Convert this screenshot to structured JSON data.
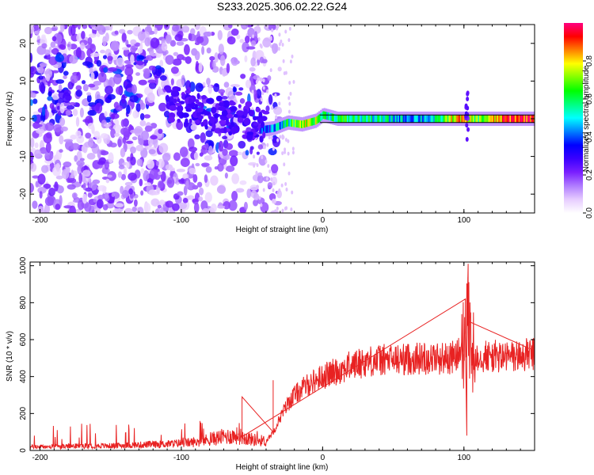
{
  "chart_data": [
    {
      "type": "heatmap",
      "title": "S233.2025.306.02.22.G24",
      "xlabel": "Height of straight line (km)",
      "ylabel": "Frequency (Hz)",
      "xlim": [
        -207,
        150
      ],
      "ylim": [
        -25,
        25
      ],
      "xticks": [
        -200,
        -100,
        0,
        100
      ],
      "xtick_labels": [
        "-200",
        "-100",
        "0",
        "100"
      ],
      "yticks": [
        -20,
        -10,
        0,
        10,
        20
      ],
      "ytick_labels": [
        "-20",
        "-10",
        "0",
        "10",
        "20"
      ],
      "colorbar": {
        "label": "Normalized spectral amplitude",
        "range": [
          0,
          1
        ],
        "ticks": [
          0,
          0.2,
          0.4,
          0.6,
          0.8
        ],
        "tick_labels": [
          "0.0",
          "0.2",
          "0.4",
          "0.6",
          "0.8"
        ],
        "colors": [
          "#ffffff",
          "#e6ccff",
          "#b07cff",
          "#7a1fff",
          "#3a00ff",
          "#0000ff",
          "#0080ff",
          "#00ffff",
          "#00ff80",
          "#00ff00",
          "#80ff00",
          "#ffff00",
          "#ff8000",
          "#ff0000",
          "#ff0080"
        ]
      },
      "reference_line_hz": [
        1.0,
        -1.0
      ],
      "ridge": [
        {
          "x": -45,
          "f": -3.0,
          "a": 0.35
        },
        {
          "x": -35,
          "f": -2.5,
          "a": 0.4
        },
        {
          "x": -25,
          "f": -1.0,
          "a": 0.55
        },
        {
          "x": -15,
          "f": -1.5,
          "a": 0.75
        },
        {
          "x": -5,
          "f": -0.5,
          "a": 0.7
        },
        {
          "x": 0,
          "f": 1.0,
          "a": 0.55
        },
        {
          "x": 10,
          "f": 0.0,
          "a": 0.6
        },
        {
          "x": 30,
          "f": 0.0,
          "a": 0.55
        },
        {
          "x": 60,
          "f": 0.0,
          "a": 0.45
        },
        {
          "x": 80,
          "f": 0.0,
          "a": 0.5
        },
        {
          "x": 95,
          "f": 0.0,
          "a": 0.85
        },
        {
          "x": 110,
          "f": 0.0,
          "a": 0.65
        },
        {
          "x": 130,
          "f": 0.0,
          "a": 0.9
        },
        {
          "x": 150,
          "f": 0.0,
          "a": 0.95
        }
      ]
    },
    {
      "type": "line",
      "xlabel": "Height of straight line (km)",
      "ylabel": "SNR (10 * v/v)",
      "xlim": [
        -207,
        150
      ],
      "ylim": [
        0,
        1020
      ],
      "xticks": [
        -200,
        -100,
        0,
        100
      ],
      "xtick_labels": [
        "-200",
        "-100",
        "0",
        "100"
      ],
      "yticks": [
        0,
        200,
        400,
        600,
        800,
        1000
      ],
      "ytick_labels": [
        "0",
        "200",
        "400",
        "600",
        "800",
        "1000"
      ],
      "color": "#e82222",
      "x": [
        -207,
        -190,
        -170,
        -150,
        -130,
        -110,
        -90,
        -80,
        -70,
        -60,
        -50,
        -40,
        -35,
        -30,
        -25,
        -20,
        -15,
        -10,
        -5,
        0,
        10,
        20,
        30,
        40,
        50,
        60,
        70,
        80,
        90,
        95,
        100,
        103,
        105,
        108,
        115,
        130,
        150
      ],
      "y": [
        20,
        20,
        25,
        25,
        30,
        35,
        45,
        60,
        75,
        80,
        60,
        50,
        100,
        180,
        250,
        300,
        330,
        360,
        380,
        400,
        430,
        460,
        480,
        490,
        490,
        495,
        500,
        500,
        500,
        510,
        560,
        700,
        480,
        520,
        510,
        505,
        520
      ],
      "spikes": [
        {
          "x": 103,
          "y": 1010
        },
        {
          "x": 102,
          "y": 80
        },
        {
          "x": 101,
          "y": 820
        },
        {
          "x": -57,
          "y": 290
        },
        {
          "x": -35,
          "y": 380
        }
      ]
    }
  ]
}
